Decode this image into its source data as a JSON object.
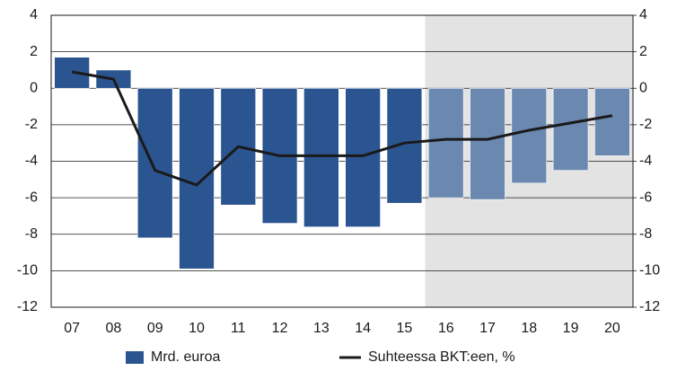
{
  "chart_data": {
    "type": "bar_line",
    "categories": [
      "07",
      "08",
      "09",
      "10",
      "11",
      "12",
      "13",
      "14",
      "15",
      "16",
      "17",
      "18",
      "19",
      "20"
    ],
    "series": [
      {
        "name": "Mrd. euroa",
        "type": "bar",
        "color": "#2b5591",
        "colors": [
          "#2b5591",
          "#2b5591",
          "#2b5591",
          "#2b5591",
          "#2b5591",
          "#2b5591",
          "#2b5591",
          "#2b5591",
          "#2b5591",
          "#6a88b0",
          "#6a88b0",
          "#6a88b0",
          "#6a88b0",
          "#6a88b0"
        ],
        "values": [
          1.7,
          1.0,
          -8.2,
          -9.9,
          -6.4,
          -7.4,
          -7.6,
          -7.6,
          -6.3,
          -6.0,
          -6.1,
          -5.2,
          -4.5,
          -3.7
        ]
      },
      {
        "name": "Suhteessa BKT:een, %",
        "type": "line",
        "color": "#1a1a1a",
        "axis": "y2",
        "values": [
          0.9,
          0.5,
          -4.5,
          -5.3,
          -3.2,
          -3.7,
          -3.7,
          -3.7,
          -3.0,
          -2.8,
          -2.8,
          -2.3,
          -1.9,
          -1.5
        ]
      }
    ],
    "shade_start": "16",
    "shade_color": "#e3e3e3",
    "ylim": [
      -12,
      4
    ],
    "yticks": [
      4,
      2,
      0,
      -2,
      -4,
      -6,
      -8,
      -10,
      -12
    ],
    "y2lim": [
      -12,
      4
    ],
    "y2ticks": [
      4,
      2,
      0,
      -2,
      -4,
      -6,
      -8,
      -10,
      -12
    ],
    "grid": true,
    "legend": "bottom"
  }
}
